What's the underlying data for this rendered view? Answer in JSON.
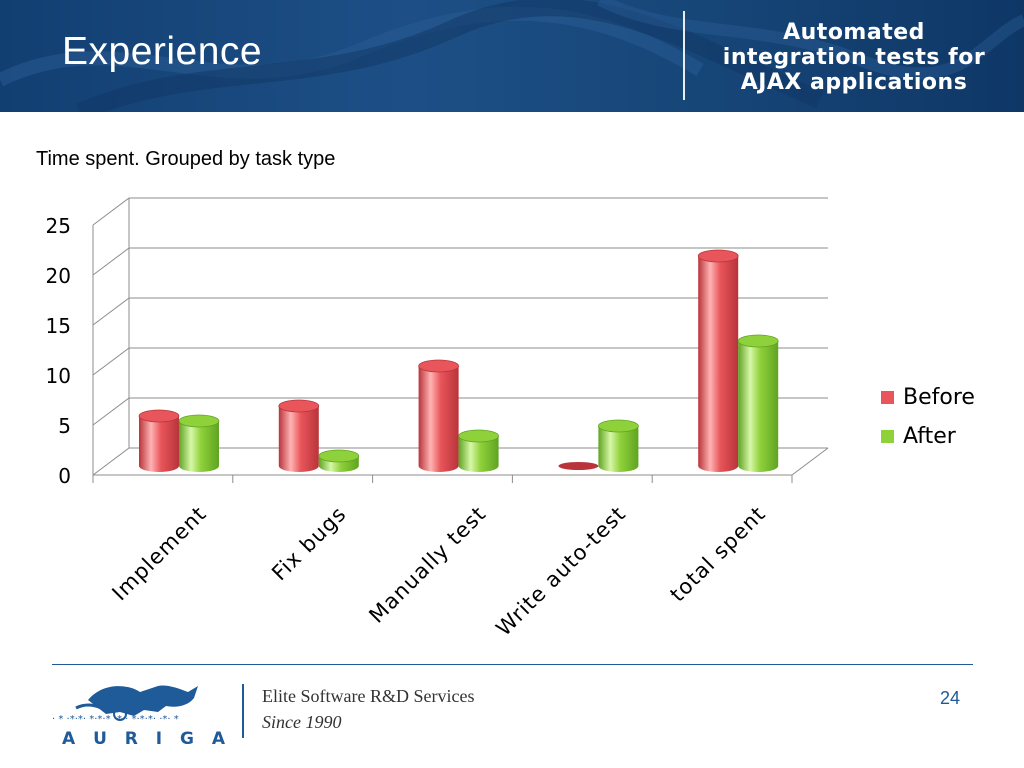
{
  "slide": {
    "title": "Experience",
    "subtitle_lines": [
      "Automated",
      "integration tests for",
      "AJAX applications"
    ],
    "page_number": "24"
  },
  "footer": {
    "company_name": "Elite Software R&D Services",
    "since": "Since 1990",
    "logo_text": "A U R I G A"
  },
  "colors": {
    "header": "#1b4b80",
    "before": "#e8555a",
    "after": "#8fd13a",
    "accent": "#1f5a99"
  },
  "chart_data": {
    "type": "bar",
    "title": "Time spent. Grouped by task type",
    "categories": [
      "Implement",
      "Fix bugs",
      "Manually test",
      "Write auto-test",
      "total spent"
    ],
    "series": [
      {
        "name": "Before",
        "values": [
          5,
          6,
          10,
          0,
          21
        ]
      },
      {
        "name": "After",
        "values": [
          4.5,
          1,
          3,
          4,
          12.5
        ]
      }
    ],
    "ylim": [
      0,
      25
    ],
    "yticks": [
      "0",
      "5",
      "10",
      "15",
      "20",
      "25"
    ],
    "grid": true,
    "legend": "right"
  }
}
